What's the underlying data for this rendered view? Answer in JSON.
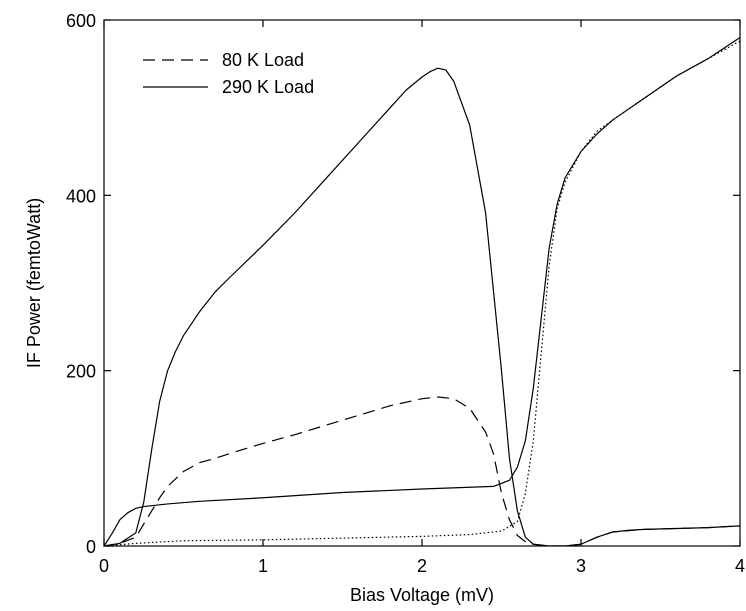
{
  "chart_data": {
    "type": "line",
    "title": "",
    "xlabel": "Bias Voltage (mV)",
    "ylabel": "IF Power (femtoWatt)",
    "xlim": [
      0,
      4
    ],
    "ylim": [
      0,
      600
    ],
    "xticks": [
      0,
      1,
      2,
      3,
      4
    ],
    "xtick_labels": [
      "0",
      "1",
      "2",
      "3",
      "4"
    ],
    "yticks": [
      0,
      200,
      400,
      600
    ],
    "ytick_labels": [
      "0",
      "200",
      "400",
      "600"
    ],
    "grid": false,
    "legend_position": "top-left",
    "legend": [
      {
        "label": "80 K Load",
        "style": "dashed"
      },
      {
        "label": "290 K Load",
        "style": "solid"
      }
    ],
    "series": [
      {
        "name": "290 K Load",
        "style": "solid",
        "x": [
          0,
          0.1,
          0.2,
          0.25,
          0.3,
          0.35,
          0.4,
          0.45,
          0.5,
          0.6,
          0.7,
          0.8,
          1.0,
          1.2,
          1.4,
          1.6,
          1.8,
          1.9,
          2.0,
          2.05,
          2.1,
          2.15,
          2.2,
          2.3,
          2.4,
          2.5,
          2.55,
          2.6,
          2.65,
          2.7,
          2.8,
          2.9,
          3.0,
          3.1,
          3.2,
          3.3,
          3.4,
          3.6,
          3.8,
          4.0
        ],
        "y": [
          0,
          3,
          15,
          50,
          110,
          165,
          200,
          222,
          240,
          267,
          290,
          308,
          343,
          380,
          420,
          460,
          500,
          520,
          535,
          541,
          545,
          543,
          530,
          480,
          380,
          200,
          100,
          40,
          10,
          2,
          0,
          0,
          2,
          10,
          16,
          18,
          19,
          20,
          21,
          23
        ]
      },
      {
        "name": "80 K Load",
        "style": "dashed",
        "x": [
          0,
          0.1,
          0.2,
          0.25,
          0.3,
          0.35,
          0.4,
          0.5,
          0.6,
          0.7,
          0.8,
          1.0,
          1.2,
          1.4,
          1.6,
          1.8,
          2.0,
          2.1,
          2.2,
          2.3,
          2.4,
          2.45,
          2.5,
          2.55,
          2.6,
          2.65,
          2.7,
          2.8,
          2.9,
          3.0,
          3.1,
          3.2,
          3.4,
          3.6,
          3.8,
          4.0
        ],
        "y": [
          0,
          3,
          10,
          25,
          40,
          55,
          68,
          85,
          95,
          100,
          106,
          117,
          127,
          138,
          149,
          160,
          168,
          170,
          168,
          157,
          130,
          105,
          60,
          30,
          12,
          5,
          2,
          0,
          0,
          2,
          10,
          16,
          19,
          20,
          21,
          23
        ]
      },
      {
        "name": "",
        "style": "solid",
        "x": [
          0,
          0.05,
          0.1,
          0.15,
          0.2,
          0.25,
          0.3,
          0.4,
          0.6,
          1.0,
          1.5,
          2.0,
          2.3,
          2.45,
          2.55,
          2.6,
          2.65,
          2.7,
          2.75,
          2.8,
          2.85,
          2.9,
          3.0,
          3.1,
          3.2,
          3.4,
          3.6,
          3.8,
          4.0
        ],
        "y": [
          0,
          14,
          30,
          38,
          43,
          45,
          46,
          48,
          51,
          55,
          61,
          65,
          67,
          68,
          75,
          90,
          120,
          180,
          260,
          340,
          390,
          420,
          450,
          470,
          486,
          511,
          536,
          556,
          580
        ]
      },
      {
        "name": "",
        "style": "dotted",
        "x": [
          0,
          0.2,
          0.5,
          1.0,
          1.5,
          2.0,
          2.3,
          2.5,
          2.6,
          2.65,
          2.7,
          2.75,
          2.8,
          2.85,
          2.9,
          3.0,
          3.1,
          3.2,
          3.4,
          3.6,
          3.8,
          4.0
        ],
        "y": [
          0,
          3,
          6,
          7,
          9,
          11,
          13,
          17,
          28,
          60,
          120,
          220,
          320,
          385,
          415,
          450,
          473,
          486,
          511,
          536,
          556,
          576
        ]
      }
    ]
  }
}
